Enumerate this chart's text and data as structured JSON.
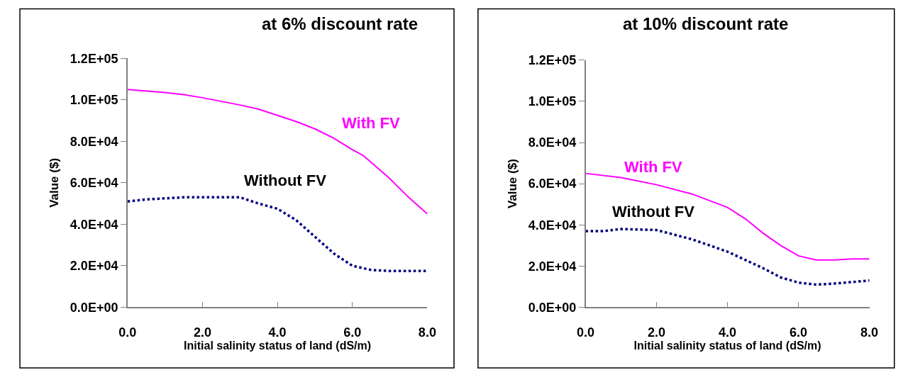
{
  "chart_data": [
    {
      "type": "line",
      "title": "at 6% discount rate",
      "xlabel": "Initial salinity status of land (dS/m)",
      "ylabel": "Value ($)",
      "xlim": [
        0,
        8
      ],
      "xticks": [
        {
          "value": 0,
          "label": "0.0"
        },
        {
          "value": 2,
          "label": "2.0"
        },
        {
          "value": 4,
          "label": "4.0"
        },
        {
          "value": 6,
          "label": "6.0"
        },
        {
          "value": 8,
          "label": "8.0"
        }
      ],
      "ylim": [
        0,
        120000
      ],
      "yticks": [
        {
          "value": 0,
          "label": "0.0E+00"
        },
        {
          "value": 20000,
          "label": "2.0E+04"
        },
        {
          "value": 40000,
          "label": "4.0E+04"
        },
        {
          "value": 60000,
          "label": "6.0E+04"
        },
        {
          "value": 80000,
          "label": "8.0E+04"
        },
        {
          "value": 100000,
          "label": "1.0E+05"
        },
        {
          "value": 120000,
          "label": "1.2E+05"
        }
      ],
      "series": [
        {
          "name": "With FV",
          "color": "#ff00ff",
          "line_style": "solid",
          "x": [
            0,
            1,
            1.5,
            2,
            3,
            3.5,
            4,
            4.5,
            5,
            5.5,
            6,
            6.3,
            7,
            7.5,
            8
          ],
          "values": [
            105000,
            103500,
            102500,
            101000,
            97500,
            95500,
            92500,
            89500,
            86000,
            81500,
            76000,
            73000,
            62000,
            53000,
            45000
          ]
        },
        {
          "name": "Without FV",
          "color": "#000080",
          "line_style": "dotted",
          "x": [
            0,
            0.5,
            1,
            1.5,
            2,
            3,
            3.5,
            4,
            4.5,
            5,
            5.5,
            6,
            6.5,
            7,
            8
          ],
          "values": [
            51000,
            52000,
            52500,
            53000,
            53000,
            53000,
            50000,
            47500,
            42000,
            34000,
            26000,
            20000,
            18000,
            17500,
            17500
          ]
        }
      ]
    },
    {
      "type": "line",
      "title": "at 10% discount rate",
      "xlabel": "Initial salinity status of land (dS/m)",
      "ylabel": "Value ($)",
      "xlim": [
        0,
        8
      ],
      "xticks": [
        {
          "value": 0,
          "label": "0.0"
        },
        {
          "value": 2,
          "label": "2.0"
        },
        {
          "value": 4,
          "label": "4.0"
        },
        {
          "value": 6,
          "label": "6.0"
        },
        {
          "value": 8,
          "label": "8.0"
        }
      ],
      "ylim": [
        0,
        120000
      ],
      "yticks": [
        {
          "value": 0,
          "label": "0.0E+00"
        },
        {
          "value": 20000,
          "label": "2.0E+04"
        },
        {
          "value": 40000,
          "label": "4.0E+04"
        },
        {
          "value": 60000,
          "label": "6.0E+04"
        },
        {
          "value": 80000,
          "label": "8.0E+04"
        },
        {
          "value": 100000,
          "label": "1.0E+05"
        },
        {
          "value": 120000,
          "label": "1.2E+05"
        }
      ],
      "series": [
        {
          "name": "With FV",
          "color": "#ff00ff",
          "line_style": "solid",
          "x": [
            0,
            1,
            2,
            3,
            4,
            4.5,
            5,
            5.5,
            6,
            6.5,
            7,
            7.5,
            8
          ],
          "values": [
            65000,
            63000,
            59500,
            55000,
            48500,
            43000,
            36000,
            30000,
            25000,
            23000,
            23000,
            23500,
            23500
          ]
        },
        {
          "name": "Without FV",
          "color": "#000080",
          "line_style": "dotted",
          "x": [
            0,
            0.5,
            1,
            2,
            3,
            4,
            4.5,
            5,
            5.5,
            6,
            6.5,
            7,
            8
          ],
          "values": [
            37000,
            37000,
            38000,
            37500,
            33000,
            27000,
            23000,
            19000,
            14500,
            12000,
            11000,
            11500,
            13000
          ]
        }
      ]
    }
  ]
}
